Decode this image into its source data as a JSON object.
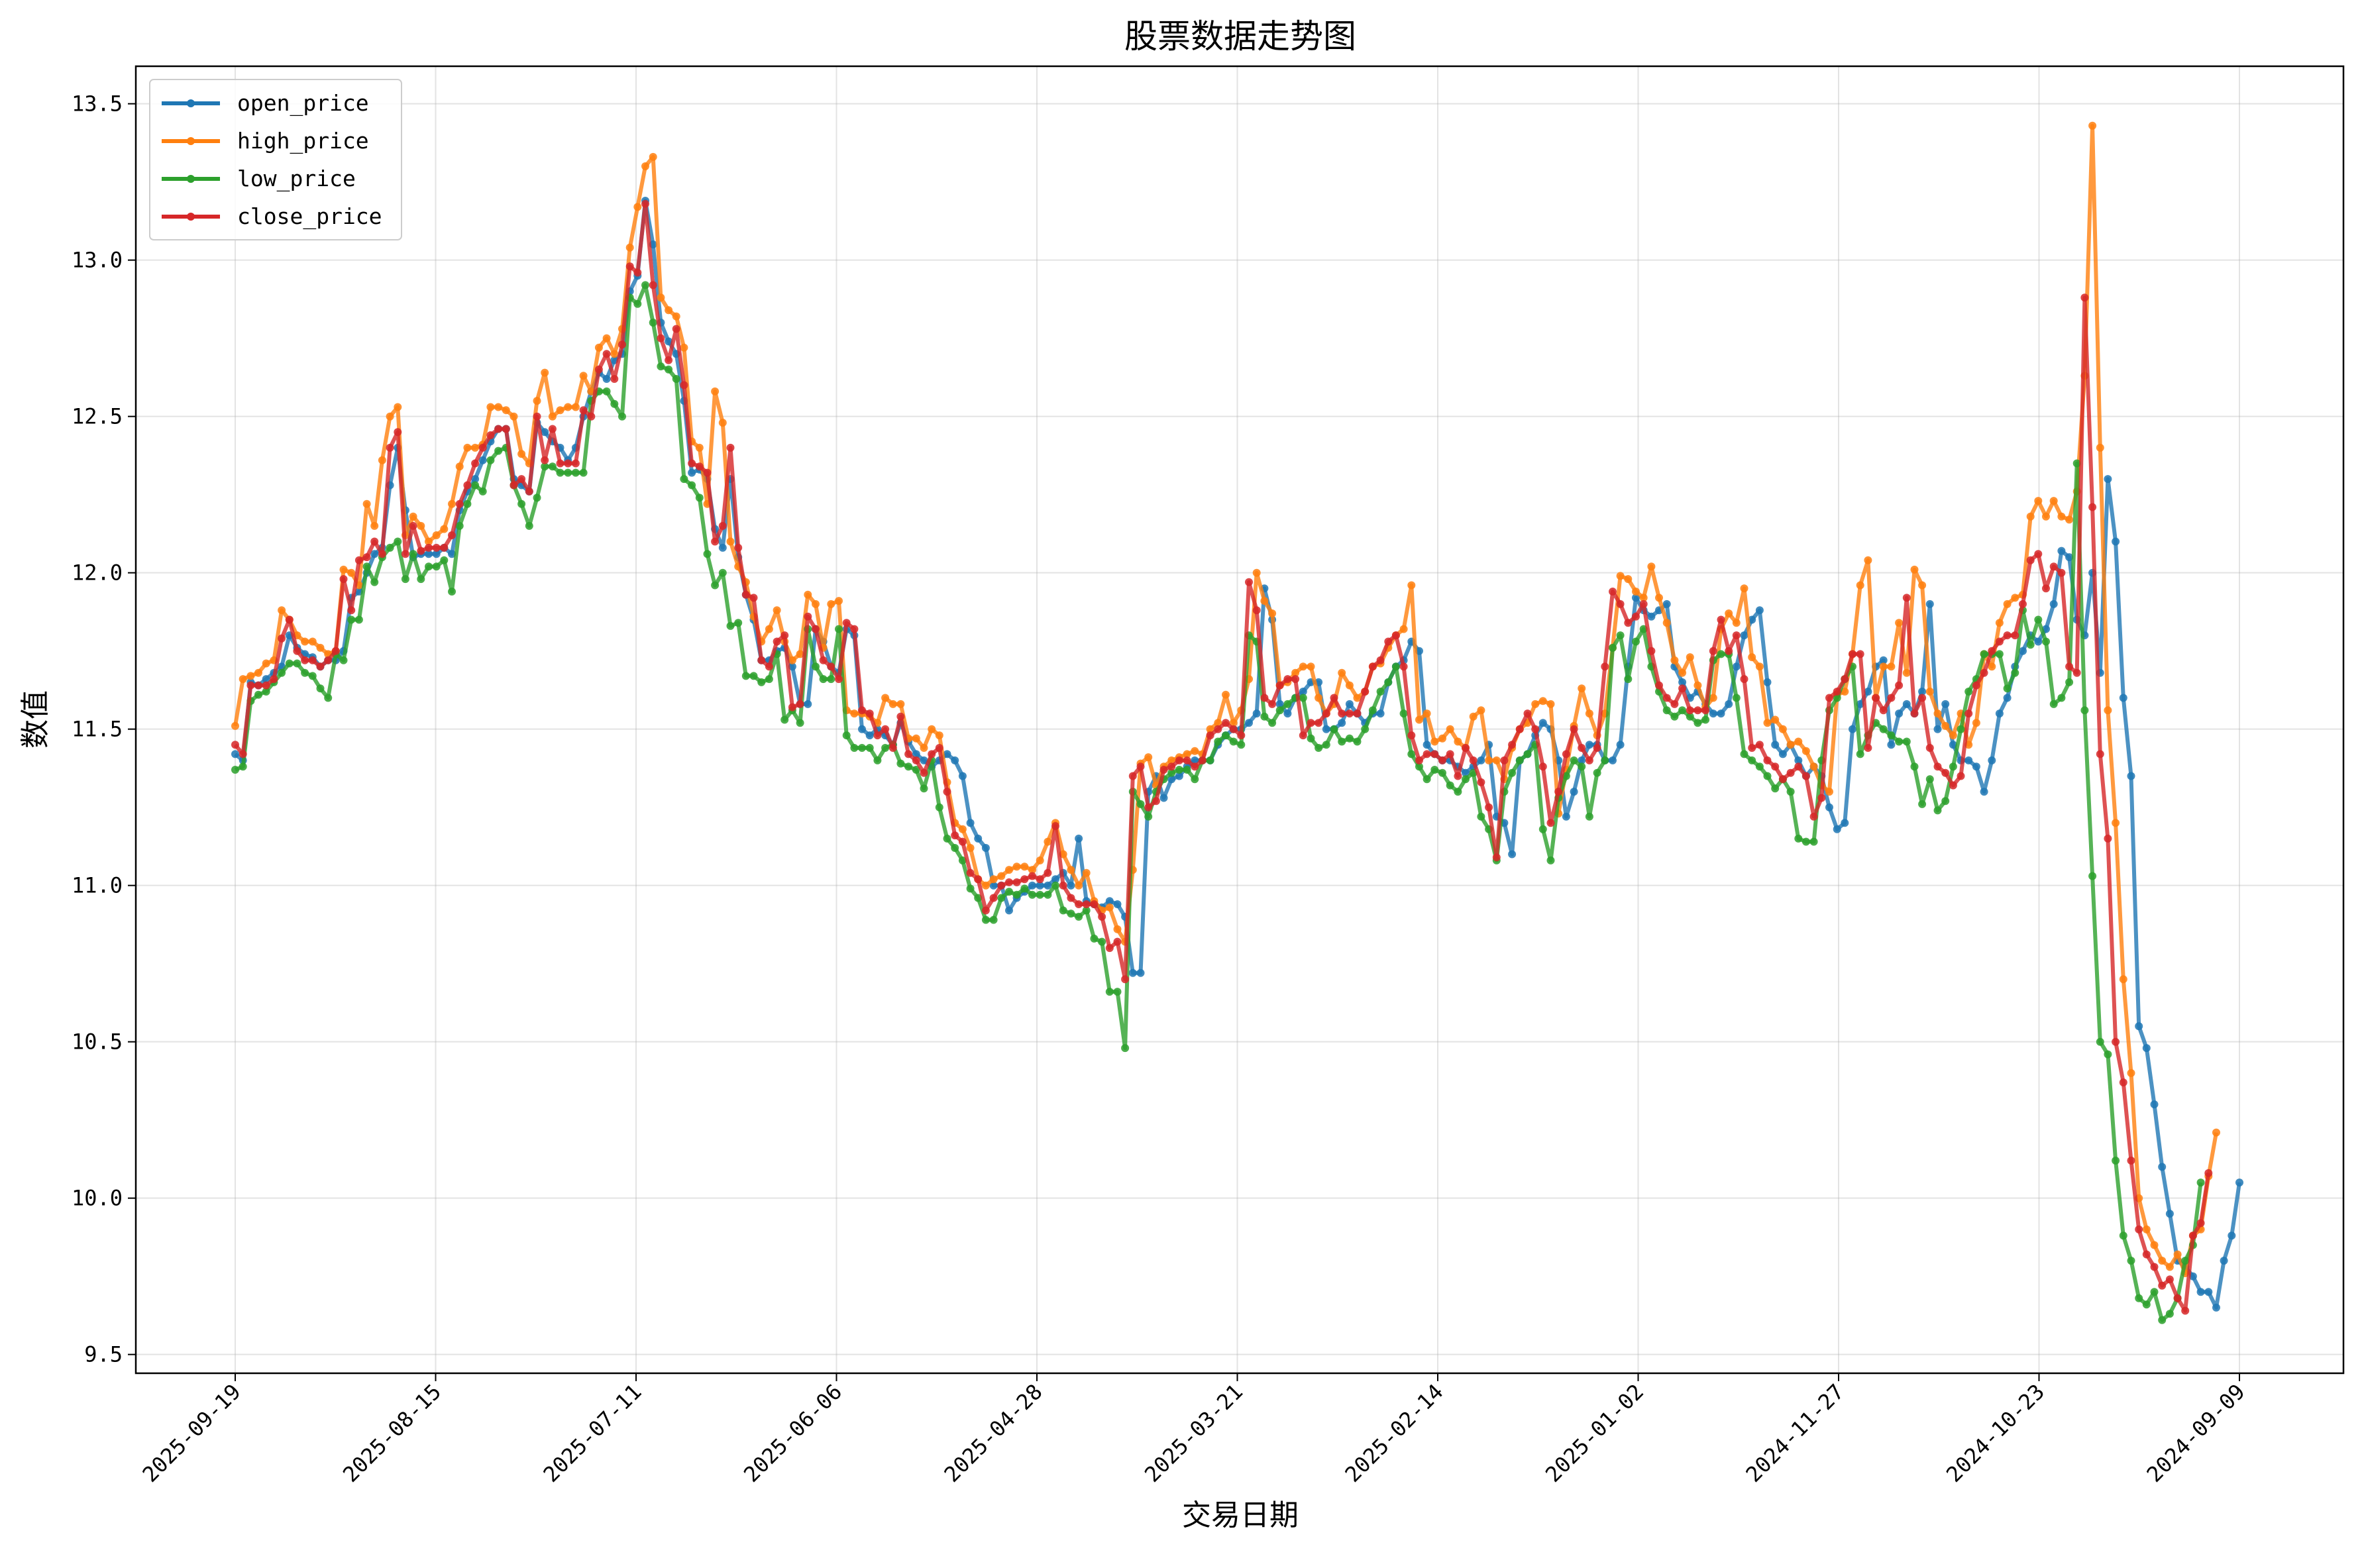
{
  "chart_data": {
    "type": "line",
    "title": "股票数据走势图",
    "xlabel": "交易日期",
    "ylabel": "数值",
    "ylim": [
      9.44,
      13.62
    ],
    "yticks": [
      9.5,
      10.0,
      10.5,
      11.0,
      11.5,
      12.0,
      12.5,
      13.0,
      13.5
    ],
    "ytick_labels": [
      "9.5",
      "10.0",
      "10.5",
      "11.0",
      "11.5",
      "12.0",
      "12.5",
      "13.0",
      "13.5"
    ],
    "xticks": [
      "2025-09-19",
      "2025-08-15",
      "2025-07-11",
      "2025-06-06",
      "2025-04-28",
      "2025-03-21",
      "2025-02-14",
      "2025-01-02",
      "2024-11-27",
      "2024-10-23",
      "2024-09-09"
    ],
    "x_order": "descending-dates",
    "grid": true,
    "legend": "top-left",
    "series": [
      {
        "name": "open_price",
        "color": "#1f77b4",
        "values": [
          11.42,
          11.4,
          11.65,
          11.64,
          11.66,
          11.68,
          11.7,
          11.8,
          11.76,
          11.74,
          11.73,
          11.7,
          11.72,
          11.72,
          11.75,
          11.92,
          11.94,
          12.0,
          12.06,
          12.08,
          12.28,
          12.4,
          12.2,
          12.05,
          12.06,
          12.06,
          12.06,
          12.08,
          12.06,
          12.2,
          12.26,
          12.3,
          12.36,
          12.42,
          12.46,
          12.46,
          12.3,
          12.28,
          12.26,
          12.48,
          12.45,
          12.42,
          12.4,
          12.36,
          12.4,
          12.5,
          12.58,
          12.64,
          12.62,
          12.68,
          12.7,
          12.9,
          12.95,
          13.19,
          13.05,
          12.8,
          12.74,
          12.7,
          12.55,
          12.32,
          12.33,
          12.3,
          12.14,
          12.08,
          12.3,
          12.05,
          11.93,
          11.85,
          11.72,
          11.72,
          11.75,
          11.76,
          11.7,
          11.58,
          11.58,
          11.82,
          11.78,
          11.7,
          11.68,
          11.82,
          11.8,
          11.5,
          11.48,
          11.5,
          11.48,
          11.45,
          11.52,
          11.46,
          11.42,
          11.4,
          11.38,
          11.4,
          11.42,
          11.4,
          11.35,
          11.2,
          11.15,
          11.12,
          11.0,
          11.0,
          10.92,
          10.96,
          10.98,
          11.0,
          11.0,
          11.0,
          11.02,
          11.04,
          11.0,
          11.15,
          10.95,
          10.94,
          10.93,
          10.95,
          10.94,
          10.9,
          10.72,
          10.72,
          11.3,
          11.35,
          11.28,
          11.34,
          11.35,
          11.38,
          11.4,
          11.4,
          11.4,
          11.45,
          11.48,
          11.5,
          11.5,
          11.52,
          11.55,
          11.95,
          11.85,
          11.58,
          11.55,
          11.6,
          11.62,
          11.65,
          11.65,
          11.5,
          11.5,
          11.52,
          11.58,
          11.55,
          11.52,
          11.55,
          11.55,
          11.65,
          11.7,
          11.72,
          11.78,
          11.75,
          11.45,
          11.42,
          11.4,
          11.4,
          11.38,
          11.36,
          11.38,
          11.4,
          11.45,
          11.22,
          11.2,
          11.1,
          11.4,
          11.42,
          11.48,
          11.52,
          11.5,
          11.4,
          11.22,
          11.3,
          11.4,
          11.45,
          11.45,
          11.4,
          11.4,
          11.45,
          11.7,
          11.92,
          11.88,
          11.86,
          11.88,
          11.9,
          11.7,
          11.65,
          11.6,
          11.62,
          11.58,
          11.55,
          11.55,
          11.58,
          11.7,
          11.8,
          11.85,
          11.88,
          11.65,
          11.45,
          11.42,
          11.45,
          11.4,
          11.35,
          11.38,
          11.35,
          11.25,
          11.18,
          11.2,
          11.5,
          11.58,
          11.62,
          11.7,
          11.72,
          11.45,
          11.55,
          11.58,
          11.55,
          11.62,
          11.9,
          11.5,
          11.58,
          11.45,
          11.4,
          11.4,
          11.38,
          11.3,
          11.4,
          11.55,
          11.6,
          11.7,
          11.75,
          11.8,
          11.78,
          11.82,
          11.9,
          12.07,
          12.05,
          11.85,
          11.8,
          12.0,
          11.68,
          12.3,
          12.1,
          11.6,
          11.35,
          10.55,
          10.48,
          10.3,
          10.1,
          9.95,
          9.8,
          9.78,
          9.75,
          9.7,
          9.7,
          9.65,
          9.8,
          9.88,
          10.05
        ]
      },
      {
        "name": "high_price",
        "color": "#ff7f0e",
        "values": [
          11.51,
          11.66,
          11.67,
          11.68,
          11.71,
          11.72,
          11.88,
          11.85,
          11.8,
          11.78,
          11.78,
          11.76,
          11.74,
          11.75,
          12.01,
          12.0,
          11.96,
          12.22,
          12.15,
          12.36,
          12.5,
          12.53,
          12.12,
          12.18,
          12.15,
          12.1,
          12.12,
          12.14,
          12.22,
          12.34,
          12.4,
          12.4,
          12.41,
          12.53,
          12.53,
          12.52,
          12.5,
          12.38,
          12.35,
          12.55,
          12.64,
          12.5,
          12.52,
          12.53,
          12.53,
          12.63,
          12.58,
          12.72,
          12.75,
          12.7,
          12.78,
          13.04,
          13.17,
          13.3,
          13.33,
          12.88,
          12.84,
          12.82,
          12.72,
          12.42,
          12.4,
          12.22,
          12.58,
          12.48,
          12.1,
          12.02,
          11.97,
          11.86,
          11.78,
          11.82,
          11.88,
          11.78,
          11.72,
          11.74,
          11.93,
          11.9,
          11.76,
          11.9,
          11.91,
          11.56,
          11.55,
          11.55,
          11.54,
          11.52,
          11.6,
          11.58,
          11.58,
          11.47,
          11.47,
          11.44,
          11.5,
          11.48,
          11.33,
          11.2,
          11.18,
          11.12,
          11.02,
          11.0,
          11.02,
          11.03,
          11.05,
          11.06,
          11.06,
          11.05,
          11.08,
          11.14,
          11.2,
          11.1,
          11.05,
          11.0,
          11.04,
          10.95,
          10.92,
          10.93,
          10.86,
          10.82,
          11.05,
          11.39,
          11.41,
          11.32,
          11.38,
          11.4,
          11.41,
          11.42,
          11.43,
          11.42,
          11.5,
          11.52,
          11.61,
          11.52,
          11.56,
          11.66,
          12.0,
          11.91,
          11.87,
          11.64,
          11.65,
          11.68,
          11.7,
          11.7,
          11.6,
          11.55,
          11.58,
          11.68,
          11.64,
          11.6,
          11.62,
          11.7,
          11.71,
          11.76,
          11.8,
          11.82,
          11.96,
          11.53,
          11.55,
          11.46,
          11.47,
          11.5,
          11.46,
          11.44,
          11.54,
          11.56,
          11.4,
          11.4,
          11.34,
          11.44,
          11.5,
          11.52,
          11.58,
          11.59,
          11.58,
          11.23,
          11.37,
          11.51,
          11.63,
          11.55,
          11.48,
          11.55,
          11.76,
          11.99,
          11.98,
          11.94,
          11.92,
          12.02,
          11.92,
          11.84,
          11.72,
          11.68,
          11.73,
          11.64,
          11.57,
          11.6,
          11.82,
          11.87,
          11.84,
          11.95,
          11.73,
          11.7,
          11.52,
          11.53,
          11.5,
          11.45,
          11.46,
          11.43,
          11.38,
          11.32,
          11.3,
          11.61,
          11.62,
          11.74,
          11.96,
          12.04,
          11.6,
          11.7,
          11.7,
          11.84,
          11.68,
          12.01,
          11.96,
          11.62,
          11.55,
          11.51,
          11.48,
          11.55,
          11.45,
          11.52,
          11.74,
          11.7,
          11.84,
          11.9,
          11.92,
          11.93,
          12.18,
          12.23,
          12.18,
          12.23,
          12.18,
          12.17,
          12.26,
          12.63,
          13.43,
          12.4,
          11.56,
          11.2,
          10.7,
          10.4,
          10.0,
          9.9,
          9.85,
          9.8,
          9.78,
          9.82,
          9.76,
          9.88,
          9.9,
          10.07,
          10.21
        ]
      },
      {
        "name": "low_price",
        "color": "#2ca02c",
        "values": [
          11.37,
          11.38,
          11.59,
          11.61,
          11.62,
          11.65,
          11.68,
          11.71,
          11.71,
          11.68,
          11.67,
          11.63,
          11.6,
          11.74,
          11.72,
          11.85,
          11.85,
          12.02,
          11.97,
          12.05,
          12.08,
          12.1,
          11.98,
          12.06,
          11.98,
          12.02,
          12.02,
          12.04,
          11.94,
          12.15,
          12.22,
          12.28,
          12.26,
          12.36,
          12.39,
          12.4,
          12.28,
          12.22,
          12.15,
          12.24,
          12.34,
          12.34,
          12.32,
          12.32,
          12.32,
          12.32,
          12.55,
          12.58,
          12.58,
          12.54,
          12.5,
          12.88,
          12.86,
          12.92,
          12.8,
          12.66,
          12.65,
          12.62,
          12.3,
          12.28,
          12.24,
          12.06,
          11.96,
          12.0,
          11.83,
          11.84,
          11.67,
          11.67,
          11.65,
          11.66,
          11.74,
          11.53,
          11.56,
          11.52,
          11.82,
          11.7,
          11.66,
          11.66,
          11.82,
          11.48,
          11.44,
          11.44,
          11.44,
          11.4,
          11.44,
          11.45,
          11.39,
          11.38,
          11.37,
          11.31,
          11.4,
          11.25,
          11.15,
          11.12,
          11.08,
          10.99,
          10.96,
          10.89,
          10.89,
          10.96,
          10.98,
          10.97,
          10.99,
          10.97,
          10.97,
          10.97,
          11.0,
          10.92,
          10.91,
          10.9,
          10.92,
          10.83,
          10.82,
          10.66,
          10.66,
          10.48,
          11.3,
          11.26,
          11.22,
          11.3,
          11.34,
          11.36,
          11.37,
          11.37,
          11.34,
          11.4,
          11.4,
          11.46,
          11.48,
          11.46,
          11.45,
          11.8,
          11.78,
          11.54,
          11.52,
          11.56,
          11.58,
          11.6,
          11.6,
          11.47,
          11.44,
          11.45,
          11.5,
          11.46,
          11.47,
          11.46,
          11.5,
          11.56,
          11.62,
          11.65,
          11.7,
          11.55,
          11.42,
          11.38,
          11.34,
          11.37,
          11.36,
          11.32,
          11.3,
          11.34,
          11.36,
          11.22,
          11.18,
          11.08,
          11.3,
          11.36,
          11.4,
          11.42,
          11.45,
          11.18,
          11.08,
          11.28,
          11.35,
          11.4,
          11.38,
          11.22,
          11.36,
          11.4,
          11.76,
          11.8,
          11.66,
          11.78,
          11.82,
          11.7,
          11.62,
          11.56,
          11.54,
          11.56,
          11.54,
          11.52,
          11.53,
          11.72,
          11.74,
          11.74,
          11.6,
          11.42,
          11.4,
          11.38,
          11.35,
          11.31,
          11.34,
          11.3,
          11.15,
          11.14,
          11.14,
          11.4,
          11.56,
          11.6,
          11.66,
          11.7,
          11.42,
          11.48,
          11.52,
          11.5,
          11.48,
          11.46,
          11.46,
          11.38,
          11.26,
          11.34,
          11.24,
          11.27,
          11.38,
          11.5,
          11.62,
          11.66,
          11.74,
          11.74,
          11.74,
          11.63,
          11.68,
          11.88,
          11.77,
          11.85,
          11.78,
          11.58,
          11.6,
          11.65,
          12.35,
          11.56,
          11.03,
          10.5,
          10.46,
          10.12,
          9.88,
          9.8,
          9.68,
          9.66,
          9.7,
          9.61,
          9.63,
          9.68,
          9.8,
          9.85,
          10.05
        ]
      },
      {
        "name": "close_price",
        "color": "#d62728",
        "values": [
          11.45,
          11.42,
          11.64,
          11.64,
          11.64,
          11.66,
          11.79,
          11.85,
          11.75,
          11.72,
          11.72,
          11.7,
          11.72,
          11.75,
          11.98,
          11.88,
          12.04,
          12.05,
          12.1,
          12.06,
          12.4,
          12.45,
          12.06,
          12.15,
          12.07,
          12.08,
          12.08,
          12.08,
          12.12,
          12.22,
          12.28,
          12.35,
          12.4,
          12.44,
          12.46,
          12.46,
          12.28,
          12.3,
          12.26,
          12.5,
          12.36,
          12.46,
          12.35,
          12.35,
          12.35,
          12.52,
          12.5,
          12.65,
          12.7,
          12.62,
          12.73,
          12.98,
          12.96,
          13.18,
          12.92,
          12.75,
          12.68,
          12.78,
          12.6,
          12.35,
          12.34,
          12.32,
          12.1,
          12.15,
          12.4,
          12.08,
          11.93,
          11.92,
          11.72,
          11.7,
          11.78,
          11.8,
          11.57,
          11.58,
          11.86,
          11.82,
          11.72,
          11.7,
          11.66,
          11.84,
          11.82,
          11.56,
          11.55,
          11.48,
          11.5,
          11.44,
          11.54,
          11.42,
          11.4,
          11.36,
          11.42,
          11.44,
          11.3,
          11.16,
          11.14,
          11.04,
          11.02,
          10.92,
          10.96,
          11.0,
          11.01,
          11.01,
          11.02,
          11.03,
          11.02,
          11.04,
          11.19,
          11.0,
          10.96,
          10.94,
          10.94,
          10.94,
          10.9,
          10.8,
          10.82,
          10.7,
          11.35,
          11.38,
          11.25,
          11.27,
          11.37,
          11.38,
          11.4,
          11.4,
          11.38,
          11.4,
          11.48,
          11.5,
          11.52,
          11.5,
          11.48,
          11.97,
          11.88,
          11.6,
          11.58,
          11.64,
          11.66,
          11.66,
          11.48,
          11.52,
          11.52,
          11.55,
          11.6,
          11.55,
          11.55,
          11.55,
          11.62,
          11.7,
          11.72,
          11.78,
          11.8,
          11.7,
          11.48,
          11.4,
          11.42,
          11.42,
          11.4,
          11.42,
          11.35,
          11.44,
          11.4,
          11.33,
          11.25,
          11.09,
          11.4,
          11.45,
          11.5,
          11.55,
          11.5,
          11.38,
          11.2,
          11.3,
          11.42,
          11.5,
          11.44,
          11.4,
          11.44,
          11.7,
          11.94,
          11.9,
          11.84,
          11.86,
          11.9,
          11.75,
          11.64,
          11.6,
          11.58,
          11.63,
          11.56,
          11.56,
          11.56,
          11.75,
          11.85,
          11.75,
          11.8,
          11.66,
          11.44,
          11.45,
          11.4,
          11.38,
          11.34,
          11.36,
          11.38,
          11.35,
          11.22,
          11.28,
          11.6,
          11.62,
          11.66,
          11.74,
          11.74,
          11.44,
          11.6,
          11.56,
          11.6,
          11.64,
          11.92,
          11.55,
          11.6,
          11.44,
          11.38,
          11.36,
          11.32,
          11.35,
          11.55,
          11.64,
          11.68,
          11.75,
          11.78,
          11.8,
          11.8,
          11.9,
          12.04,
          12.06,
          11.95,
          12.02,
          12.0,
          11.7,
          11.68,
          12.88,
          12.21,
          11.42,
          11.15,
          10.5,
          10.37,
          10.12,
          9.9,
          9.82,
          9.78,
          9.72,
          9.74,
          9.68,
          9.64,
          9.88,
          9.92,
          10.08
        ]
      }
    ]
  }
}
